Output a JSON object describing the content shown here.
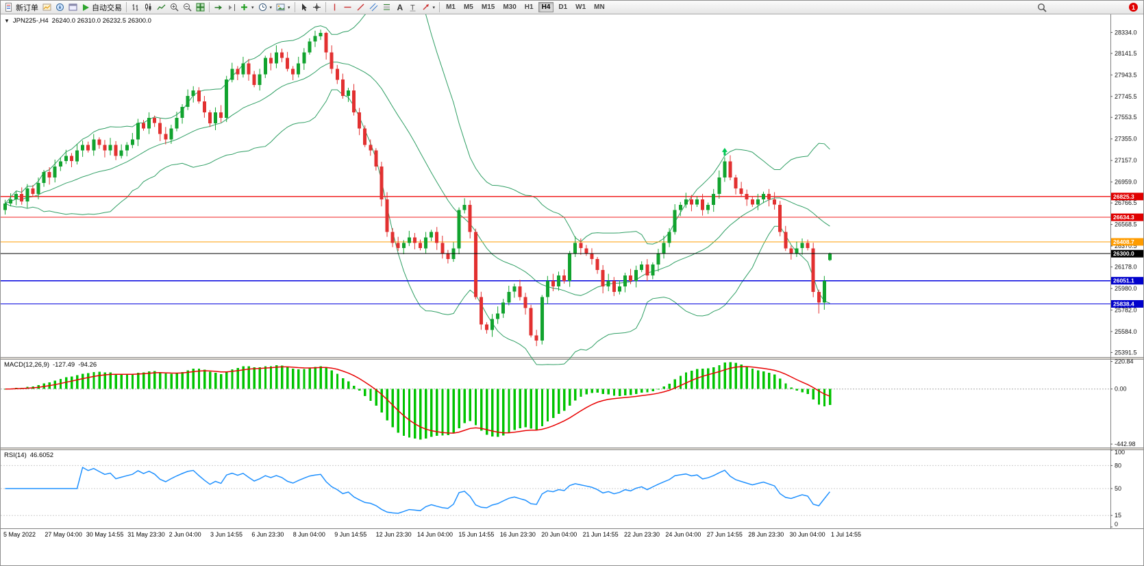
{
  "toolbar": {
    "new_order_label": "新订单",
    "autotrading_label": "自动交易",
    "timeframes": [
      "M1",
      "M5",
      "M15",
      "M30",
      "H1",
      "H4",
      "D1",
      "W1",
      "MN"
    ],
    "active_timeframe": "H4",
    "notification_count": "1"
  },
  "chart": {
    "symbol_period": "JPN225-,H4",
    "ohlc_text": "26240.0 26310.0 26232.5 26300.0"
  },
  "chart_data": {
    "type": "candlestick",
    "symbol": "JPN225-",
    "period": "H4",
    "colors": {
      "up": "#11a32e",
      "down": "#e23030",
      "bollinger": "#2e9e63",
      "macd_hist": "#00c400",
      "macd_signal": "#e80000",
      "rsi": "#1e90ff"
    },
    "y_axis_ticks": [
      28334.0,
      28141.5,
      27943.5,
      27745.5,
      27553.5,
      27355.0,
      27157.0,
      26959.0,
      26766.5,
      26568.5,
      26370.5,
      26178.0,
      25980.0,
      25782.0,
      25584.0,
      25391.5
    ],
    "x_axis_labels": [
      "5 May 2022",
      "27 May 04:00",
      "30 May 14:55",
      "31 May 23:30",
      "2 Jun 04:00",
      "3 Jun 14:55",
      "6 Jun 23:30",
      "8 Jun 04:00",
      "9 Jun 14:55",
      "12 Jun 23:30",
      "14 Jun 04:00",
      "15 Jun 14:55",
      "16 Jun 23:30",
      "20 Jun 04:00",
      "21 Jun 14:55",
      "22 Jun 23:30",
      "24 Jun 04:00",
      "27 Jun 14:55",
      "28 Jun 23:30",
      "30 Jun 04:00",
      "1 Jul 14:55"
    ],
    "hlines": [
      {
        "value": 26825.3,
        "line_color": "#f02020",
        "label_bg": "#e00000"
      },
      {
        "value": 26634.3,
        "line_color": "#f02020",
        "label_bg": "#e00000"
      },
      {
        "value": 26408.7,
        "line_color": "#ff9c00",
        "label_bg": "#ff9c00"
      },
      {
        "value": 26051.1,
        "line_color": "#0000dd",
        "label_bg": "#0000cc"
      },
      {
        "value": 25838.4,
        "line_color": "#0000dd",
        "label_bg": "#0000cc"
      }
    ],
    "current_price": {
      "value": 26300.0,
      "line_color": "#000000",
      "label_bg": "#000000"
    },
    "marker": {
      "index": 130,
      "type": "up-arrow",
      "color": "#00c853"
    },
    "bollinger": {
      "period": 20,
      "deviation": 2
    },
    "macd": {
      "label": "MACD(12,26,9)",
      "value_main": "-127.49",
      "value_signal": "-94.26",
      "params": [
        12,
        26,
        9
      ],
      "ticks": [
        "220.84",
        "0.00",
        "-442.98"
      ],
      "tick_values": [
        220.84,
        0,
        -442.98
      ]
    },
    "rsi": {
      "label": "RSI(14)",
      "value": "46.6052",
      "period": 14,
      "ticks": [
        "100",
        "80",
        "50",
        "15",
        "0"
      ],
      "tick_values": [
        100,
        80,
        50,
        15,
        0
      ],
      "levels": [
        80,
        50,
        15
      ]
    },
    "candles": [
      [
        26700,
        26795,
        26660,
        26760
      ],
      [
        26760,
        26855,
        26735,
        26800
      ],
      [
        26800,
        26875,
        26745,
        26850
      ],
      [
        26850,
        26910,
        26750,
        26780
      ],
      [
        26780,
        26940,
        26720,
        26900
      ],
      [
        26900,
        26930,
        26830,
        26850
      ],
      [
        26850,
        27000,
        26800,
        26950
      ],
      [
        26950,
        27070,
        26915,
        27050
      ],
      [
        27050,
        27095,
        26935,
        27000
      ],
      [
        27000,
        27165,
        26955,
        27100
      ],
      [
        27100,
        27185,
        27060,
        27150
      ],
      [
        27150,
        27255,
        27125,
        27200
      ],
      [
        27200,
        27225,
        27095,
        27150
      ],
      [
        27150,
        27310,
        27120,
        27250
      ],
      [
        27250,
        27340,
        27190,
        27300
      ],
      [
        27300,
        27330,
        27230,
        27250
      ],
      [
        27250,
        27400,
        27200,
        27350
      ],
      [
        27350,
        27370,
        27265,
        27300
      ],
      [
        27300,
        27345,
        27185,
        27250
      ],
      [
        27250,
        27365,
        27205,
        27300
      ],
      [
        27300,
        27335,
        27160,
        27200
      ],
      [
        27200,
        27305,
        27175,
        27250
      ],
      [
        27250,
        27325,
        27195,
        27300
      ],
      [
        27300,
        27410,
        27270,
        27350
      ],
      [
        27350,
        27540,
        27290,
        27500
      ],
      [
        27500,
        27530,
        27430,
        27450
      ],
      [
        27450,
        27600,
        27400,
        27550
      ],
      [
        27550,
        27570,
        27465,
        27500
      ],
      [
        27500,
        27545,
        27335,
        27400
      ],
      [
        27400,
        27465,
        27305,
        27350
      ],
      [
        27350,
        27485,
        27310,
        27450
      ],
      [
        27450,
        27605,
        27425,
        27550
      ],
      [
        27550,
        27675,
        27495,
        27650
      ],
      [
        27650,
        27810,
        27620,
        27750
      ],
      [
        27750,
        27840,
        27690,
        27800
      ],
      [
        27800,
        27830,
        27680,
        27700
      ],
      [
        27700,
        27750,
        27550,
        27600
      ],
      [
        27600,
        27620,
        27465,
        27500
      ],
      [
        27500,
        27645,
        27435,
        27600
      ],
      [
        27600,
        27665,
        27505,
        27550
      ],
      [
        27550,
        27935,
        27510,
        27900
      ],
      [
        27900,
        28055,
        27875,
        28000
      ],
      [
        28000,
        28025,
        27895,
        27950
      ],
      [
        27950,
        28110,
        27920,
        28050
      ],
      [
        28050,
        28090,
        27890,
        27950
      ],
      [
        27950,
        27980,
        27830,
        27850
      ],
      [
        27850,
        28000,
        27800,
        27950
      ],
      [
        27950,
        28120,
        27915,
        28100
      ],
      [
        28100,
        28145,
        27985,
        28050
      ],
      [
        28050,
        28215,
        28005,
        28150
      ],
      [
        28150,
        28185,
        28060,
        28100
      ],
      [
        28100,
        28155,
        27975,
        28000
      ],
      [
        28000,
        28025,
        27895,
        27950
      ],
      [
        27950,
        28110,
        27920,
        28050
      ],
      [
        28050,
        28190,
        27990,
        28150
      ],
      [
        28150,
        28280,
        28130,
        28250
      ],
      [
        28250,
        28350,
        28200,
        28300
      ],
      [
        28300,
        28360,
        28265,
        28330
      ],
      [
        28330,
        28340,
        28085,
        28150
      ],
      [
        28150,
        28215,
        27955,
        28000
      ],
      [
        28000,
        28035,
        27860,
        27900
      ],
      [
        27900,
        27955,
        27725,
        27750
      ],
      [
        27750,
        27825,
        27695,
        27800
      ],
      [
        27800,
        27860,
        27570,
        27600
      ],
      [
        27600,
        27640,
        27390,
        27450
      ],
      [
        27450,
        27480,
        27280,
        27300
      ],
      [
        27300,
        27350,
        27200,
        27250
      ],
      [
        27250,
        27270,
        27065,
        27100
      ],
      [
        27100,
        27145,
        26735,
        26800
      ],
      [
        26800,
        26865,
        26455,
        26500
      ],
      [
        26500,
        26535,
        26360,
        26400
      ],
      [
        26400,
        26455,
        26325,
        26350
      ],
      [
        26350,
        26425,
        26295,
        26400
      ],
      [
        26400,
        26510,
        26370,
        26450
      ],
      [
        26450,
        26490,
        26340,
        26400
      ],
      [
        26400,
        26430,
        26330,
        26350
      ],
      [
        26350,
        26500,
        26300,
        26450
      ],
      [
        26450,
        26520,
        26415,
        26500
      ],
      [
        26500,
        26545,
        26335,
        26400
      ],
      [
        26400,
        26465,
        26255,
        26300
      ],
      [
        26300,
        26335,
        26210,
        26250
      ],
      [
        26250,
        26405,
        26225,
        26350
      ],
      [
        26350,
        26725,
        26295,
        26700
      ],
      [
        26700,
        26810,
        26670,
        26750
      ],
      [
        26750,
        26790,
        26440,
        26500
      ],
      [
        26500,
        26530,
        25880,
        25900
      ],
      [
        25900,
        25950,
        25600,
        25650
      ],
      [
        25650,
        25670,
        25565,
        25600
      ],
      [
        25600,
        25745,
        25535,
        25700
      ],
      [
        25700,
        25815,
        25655,
        25750
      ],
      [
        25750,
        25885,
        25710,
        25850
      ],
      [
        25850,
        26005,
        25825,
        25950
      ],
      [
        25950,
        26025,
        25895,
        26000
      ],
      [
        26000,
        26060,
        25870,
        25900
      ],
      [
        25900,
        25940,
        25740,
        25800
      ],
      [
        25800,
        25830,
        25530,
        25550
      ],
      [
        25550,
        25600,
        25450,
        25500
      ],
      [
        25500,
        25920,
        25465,
        25900
      ],
      [
        25900,
        26095,
        25835,
        26050
      ],
      [
        26050,
        26115,
        25955,
        26000
      ],
      [
        26000,
        26135,
        25960,
        26100
      ],
      [
        26100,
        26155,
        26025,
        26050
      ],
      [
        26050,
        26325,
        25995,
        26300
      ],
      [
        26300,
        26460,
        26270,
        26400
      ],
      [
        26400,
        26440,
        26290,
        26350
      ],
      [
        26350,
        26380,
        26280,
        26300
      ],
      [
        26300,
        26350,
        26200,
        26250
      ],
      [
        26250,
        26270,
        26115,
        26150
      ],
      [
        26150,
        26195,
        25935,
        26000
      ],
      [
        26000,
        26115,
        25955,
        26050
      ],
      [
        26050,
        26085,
        25910,
        25950
      ],
      [
        25950,
        26055,
        25925,
        26000
      ],
      [
        26000,
        26125,
        25945,
        26100
      ],
      [
        26100,
        26160,
        26020,
        26050
      ],
      [
        26050,
        26190,
        25990,
        26150
      ],
      [
        26150,
        26230,
        26130,
        26200
      ],
      [
        26200,
        26250,
        26050,
        26100
      ],
      [
        26100,
        26220,
        26065,
        26200
      ],
      [
        26200,
        26345,
        26135,
        26300
      ],
      [
        26300,
        26465,
        26255,
        26400
      ],
      [
        26400,
        26535,
        26360,
        26500
      ],
      [
        26500,
        26755,
        26475,
        26700
      ],
      [
        26700,
        26775,
        26645,
        26750
      ],
      [
        26750,
        26860,
        26720,
        26800
      ],
      [
        26800,
        26840,
        26690,
        26750
      ],
      [
        26750,
        26830,
        26730,
        26800
      ],
      [
        26800,
        26850,
        26650,
        26700
      ],
      [
        26700,
        26770,
        26665,
        26750
      ],
      [
        26750,
        26895,
        26685,
        26850
      ],
      [
        26850,
        27065,
        26805,
        27000
      ],
      [
        27000,
        27185,
        26960,
        27150
      ],
      [
        27150,
        27205,
        26975,
        27000
      ],
      [
        27000,
        27025,
        26845,
        26900
      ],
      [
        26900,
        26960,
        26820,
        26850
      ],
      [
        26850,
        26890,
        26740,
        26800
      ],
      [
        26800,
        26830,
        26730,
        26750
      ],
      [
        26750,
        26850,
        26700,
        26800
      ],
      [
        26800,
        26870,
        26765,
        26850
      ],
      [
        26850,
        26895,
        26735,
        26800
      ],
      [
        26800,
        26865,
        26705,
        26750
      ],
      [
        26750,
        26785,
        26460,
        26500
      ],
      [
        26500,
        26555,
        26325,
        26350
      ],
      [
        26350,
        26375,
        26245,
        26300
      ],
      [
        26300,
        26410,
        26270,
        26350
      ],
      [
        26350,
        26440,
        26290,
        26400
      ],
      [
        26400,
        26430,
        26330,
        26350
      ],
      [
        26350,
        26400,
        25900,
        25950
      ],
      [
        25950,
        25970,
        25750,
        25850
      ],
      [
        25850,
        26095,
        25785,
        26050
      ],
      [
        26240,
        26310,
        26232.5,
        26300
      ]
    ]
  }
}
